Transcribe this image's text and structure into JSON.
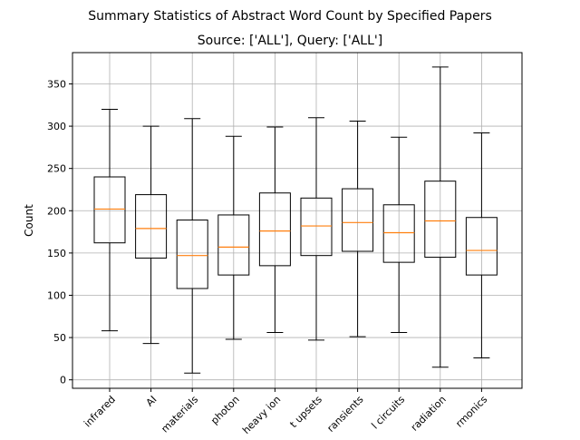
{
  "title": "Summary Statistics of Abstract Word Count by Specified Papers",
  "subtitle": "Source: ['ALL'], Query: ['ALL']",
  "chart_data": {
    "type": "box",
    "title": "Summary Statistics of Abstract Word Count by Specified Papers",
    "subtitle": "Source: ['ALL'], Query: ['ALL']",
    "xlabel": "",
    "ylabel": "Count",
    "ylim": [
      -10,
      387
    ],
    "yticks": [
      0,
      50,
      100,
      150,
      200,
      250,
      300,
      350
    ],
    "grid": true,
    "categories": [
      "infrared",
      "AI",
      "materials",
      "photon",
      "heavy ion",
      "t upsets",
      "ransients",
      "l circuits",
      "radiation",
      "rmonics"
    ],
    "category_label_lines": [
      [
        "infrared"
      ],
      [
        "AI"
      ],
      [
        "materials"
      ],
      [
        "photon"
      ],
      [
        "heavy ion"
      ],
      [
        "t upsets"
      ],
      [
        "ransients"
      ],
      [
        "l circuits"
      ],
      [
        "radiation"
      ],
      [
        "rmonics"
      ]
    ],
    "boxes": [
      {
        "category": "infrared",
        "whisker_low": 58,
        "q1": 162,
        "median": 202,
        "q3": 240,
        "whisker_high": 320
      },
      {
        "category": "AI",
        "whisker_low": 43,
        "q1": 144,
        "median": 179,
        "q3": 219,
        "whisker_high": 300
      },
      {
        "category": "materials",
        "whisker_low": 8,
        "q1": 108,
        "median": 147,
        "q3": 189,
        "whisker_high": 309
      },
      {
        "category": "photon",
        "whisker_low": 48,
        "q1": 124,
        "median": 157,
        "q3": 195,
        "whisker_high": 288
      },
      {
        "category": "heavy ion",
        "whisker_low": 56,
        "q1": 135,
        "median": 176,
        "q3": 221,
        "whisker_high": 299
      },
      {
        "category": "t upsets",
        "whisker_low": 47,
        "q1": 147,
        "median": 182,
        "q3": 215,
        "whisker_high": 310
      },
      {
        "category": "ransients",
        "whisker_low": 51,
        "q1": 152,
        "median": 186,
        "q3": 226,
        "whisker_high": 306
      },
      {
        "category": "l circuits",
        "whisker_low": 56,
        "q1": 139,
        "median": 174,
        "q3": 207,
        "whisker_high": 287
      },
      {
        "category": "radiation",
        "whisker_low": 15,
        "q1": 145,
        "median": 188,
        "q3": 235,
        "whisker_high": 370
      },
      {
        "category": "rmonics",
        "whisker_low": 26,
        "q1": 124,
        "median": 153,
        "q3": 192,
        "whisker_high": 292
      }
    ],
    "colors": {
      "box": "#000000",
      "median": "#ff7f0e",
      "grid": "#b0b0b0",
      "background": "#ffffff"
    }
  }
}
